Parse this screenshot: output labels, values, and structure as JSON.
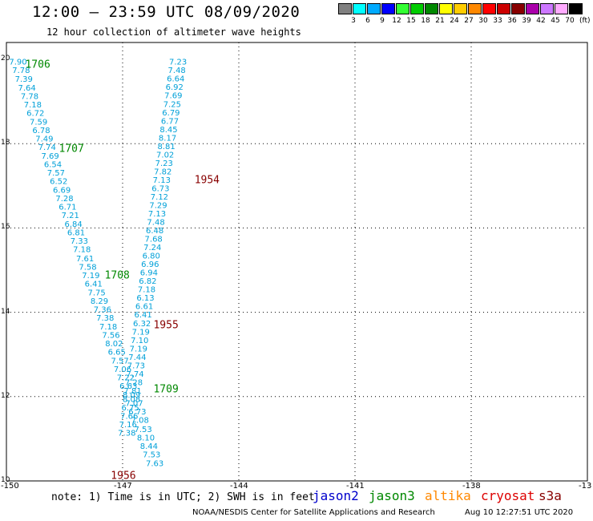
{
  "header": {
    "title": "12:00 – 23:59 UTC 08/09/2020",
    "subtitle": "12 hour collection of altimeter wave heights"
  },
  "color_scale": {
    "unit": "(ft)",
    "bins": [
      {
        "label": "3",
        "color": "#808080"
      },
      {
        "label": "6",
        "color": "#00ffff"
      },
      {
        "label": "9",
        "color": "#00aaff"
      },
      {
        "label": "12",
        "color": "#0000ff"
      },
      {
        "label": "15",
        "color": "#33ff33"
      },
      {
        "label": "18",
        "color": "#00cc00"
      },
      {
        "label": "21",
        "color": "#008800"
      },
      {
        "label": "24",
        "color": "#ffff00"
      },
      {
        "label": "27",
        "color": "#ffcc00"
      },
      {
        "label": "30",
        "color": "#ff8800"
      },
      {
        "label": "33",
        "color": "#ff0000"
      },
      {
        "label": "36",
        "color": "#cc0000"
      },
      {
        "label": "39",
        "color": "#880000"
      },
      {
        "label": "42",
        "color": "#aa00aa"
      },
      {
        "label": "45",
        "color": "#cc77ff"
      },
      {
        "label": "70",
        "color": "#ffaaff"
      },
      {
        "label": "",
        "color": "#000000"
      }
    ]
  },
  "map": {
    "lon_ticks": [
      "-150",
      "-147",
      "-144",
      "-141",
      "-138",
      "-13"
    ],
    "lat_ticks": [
      "20",
      "18",
      "16",
      "14",
      "12",
      "10"
    ],
    "wave_color": "#00a0d8",
    "tracks": [
      {
        "points": [
          {
            "lon": -149.7,
            "lat": 19.95,
            "v": "7.90"
          },
          {
            "lon": -149.62,
            "lat": 19.75,
            "v": "7.78"
          },
          {
            "lon": -149.55,
            "lat": 19.54,
            "v": "7.39"
          },
          {
            "lon": -149.47,
            "lat": 19.34,
            "v": "7.64"
          },
          {
            "lon": -149.4,
            "lat": 19.14,
            "v": "7.78"
          },
          {
            "lon": -149.32,
            "lat": 18.94,
            "v": "7.18"
          },
          {
            "lon": -149.25,
            "lat": 18.74,
            "v": "6.72"
          },
          {
            "lon": -149.17,
            "lat": 18.53,
            "v": "7.59"
          },
          {
            "lon": -149.1,
            "lat": 18.33,
            "v": "6.78"
          },
          {
            "lon": -149.02,
            "lat": 18.13,
            "v": "7.49"
          },
          {
            "lon": -148.95,
            "lat": 17.93,
            "v": "7.74"
          },
          {
            "lon": -148.87,
            "lat": 17.72,
            "v": "7.69"
          },
          {
            "lon": -148.8,
            "lat": 17.52,
            "v": "6.54"
          },
          {
            "lon": -148.72,
            "lat": 17.32,
            "v": "7.57"
          },
          {
            "lon": -148.65,
            "lat": 17.12,
            "v": "6.52"
          },
          {
            "lon": -148.57,
            "lat": 16.91,
            "v": "6.69"
          },
          {
            "lon": -148.5,
            "lat": 16.71,
            "v": "7.28"
          },
          {
            "lon": -148.42,
            "lat": 16.51,
            "v": "6.71"
          },
          {
            "lon": -148.35,
            "lat": 16.31,
            "v": "7.21"
          },
          {
            "lon": -148.27,
            "lat": 16.1,
            "v": "6.84"
          },
          {
            "lon": -148.2,
            "lat": 15.9,
            "v": "6.81"
          },
          {
            "lon": -148.12,
            "lat": 15.7,
            "v": "7.33"
          },
          {
            "lon": -148.05,
            "lat": 15.5,
            "v": "7.18"
          },
          {
            "lon": -147.97,
            "lat": 15.29,
            "v": "7.61"
          },
          {
            "lon": -147.9,
            "lat": 15.09,
            "v": "7.58"
          },
          {
            "lon": -147.82,
            "lat": 14.89,
            "v": "7.19"
          },
          {
            "lon": -147.75,
            "lat": 14.69,
            "v": "6.41"
          },
          {
            "lon": -147.67,
            "lat": 14.48,
            "v": "7.75"
          },
          {
            "lon": -147.6,
            "lat": 14.28,
            "v": "8.29"
          },
          {
            "lon": -147.52,
            "lat": 14.08,
            "v": "7.36"
          },
          {
            "lon": -147.45,
            "lat": 13.88,
            "v": "7.38"
          },
          {
            "lon": -147.37,
            "lat": 13.67,
            "v": "7.18"
          },
          {
            "lon": -147.3,
            "lat": 13.47,
            "v": "7.56"
          },
          {
            "lon": -147.22,
            "lat": 13.27,
            "v": "8.02"
          },
          {
            "lon": -147.15,
            "lat": 13.07,
            "v": "6.65"
          },
          {
            "lon": -147.07,
            "lat": 12.86,
            "v": "7.57"
          },
          {
            "lon": -147.0,
            "lat": 12.66,
            "v": "7.06"
          },
          {
            "lon": -146.92,
            "lat": 12.46,
            "v": "7.22"
          },
          {
            "lon": -146.85,
            "lat": 12.26,
            "v": "6.63"
          },
          {
            "lon": -146.77,
            "lat": 12.05,
            "v": "8.09"
          },
          {
            "lon": -146.7,
            "lat": 11.85,
            "v": "7.07"
          },
          {
            "lon": -146.62,
            "lat": 11.65,
            "v": "6.73"
          },
          {
            "lon": -146.55,
            "lat": 11.45,
            "v": "7.08"
          },
          {
            "lon": -146.47,
            "lat": 11.24,
            "v": "7.53"
          },
          {
            "lon": -146.4,
            "lat": 11.04,
            "v": "8.10"
          },
          {
            "lon": -146.32,
            "lat": 10.84,
            "v": "8.44"
          },
          {
            "lon": -146.25,
            "lat": 10.64,
            "v": "7.53"
          },
          {
            "lon": -146.17,
            "lat": 10.43,
            "v": "7.63"
          }
        ]
      },
      {
        "points": [
          {
            "lon": -145.57,
            "lat": 19.95,
            "v": "7.23"
          },
          {
            "lon": -145.6,
            "lat": 19.75,
            "v": "7.48"
          },
          {
            "lon": -145.63,
            "lat": 19.55,
            "v": "6.64"
          },
          {
            "lon": -145.66,
            "lat": 19.35,
            "v": "6.92"
          },
          {
            "lon": -145.69,
            "lat": 19.15,
            "v": "7.69"
          },
          {
            "lon": -145.72,
            "lat": 18.95,
            "v": "7.25"
          },
          {
            "lon": -145.75,
            "lat": 18.75,
            "v": "6.79"
          },
          {
            "lon": -145.78,
            "lat": 18.55,
            "v": "6.77"
          },
          {
            "lon": -145.81,
            "lat": 18.35,
            "v": "8.45"
          },
          {
            "lon": -145.84,
            "lat": 18.15,
            "v": "8.17"
          },
          {
            "lon": -145.87,
            "lat": 17.95,
            "v": "8.81"
          },
          {
            "lon": -145.9,
            "lat": 17.75,
            "v": "7.02"
          },
          {
            "lon": -145.93,
            "lat": 17.55,
            "v": "7.23"
          },
          {
            "lon": -145.96,
            "lat": 17.35,
            "v": "7.82"
          },
          {
            "lon": -145.99,
            "lat": 17.15,
            "v": "7.13"
          },
          {
            "lon": -146.02,
            "lat": 16.95,
            "v": "6.73"
          },
          {
            "lon": -146.05,
            "lat": 16.75,
            "v": "7.12"
          },
          {
            "lon": -146.08,
            "lat": 16.55,
            "v": "7.29"
          },
          {
            "lon": -146.11,
            "lat": 16.35,
            "v": "7.13"
          },
          {
            "lon": -146.14,
            "lat": 16.15,
            "v": "7.48"
          },
          {
            "lon": -146.17,
            "lat": 15.95,
            "v": "6.48"
          },
          {
            "lon": -146.2,
            "lat": 15.75,
            "v": "7.68"
          },
          {
            "lon": -146.23,
            "lat": 15.55,
            "v": "7.24"
          },
          {
            "lon": -146.26,
            "lat": 15.35,
            "v": "6.80"
          },
          {
            "lon": -146.29,
            "lat": 15.15,
            "v": "6.96"
          },
          {
            "lon": -146.32,
            "lat": 14.95,
            "v": "6.94"
          },
          {
            "lon": -146.35,
            "lat": 14.75,
            "v": "6.82"
          },
          {
            "lon": -146.38,
            "lat": 14.55,
            "v": "7.18"
          },
          {
            "lon": -146.41,
            "lat": 14.35,
            "v": "6.13"
          },
          {
            "lon": -146.44,
            "lat": 14.15,
            "v": "6.61"
          },
          {
            "lon": -146.47,
            "lat": 13.95,
            "v": "6.41"
          },
          {
            "lon": -146.5,
            "lat": 13.75,
            "v": "6.32"
          },
          {
            "lon": -146.53,
            "lat": 13.55,
            "v": "7.19"
          },
          {
            "lon": -146.56,
            "lat": 13.35,
            "v": "7.10"
          },
          {
            "lon": -146.59,
            "lat": 13.15,
            "v": "7.19"
          },
          {
            "lon": -146.62,
            "lat": 12.95,
            "v": "7.44"
          },
          {
            "lon": -146.65,
            "lat": 12.75,
            "v": "7.73"
          },
          {
            "lon": -146.68,
            "lat": 12.55,
            "v": "7.74"
          },
          {
            "lon": -146.71,
            "lat": 12.35,
            "v": "7.28"
          },
          {
            "lon": -146.74,
            "lat": 12.15,
            "v": "7.81"
          },
          {
            "lon": -146.77,
            "lat": 11.95,
            "v": "8.08"
          },
          {
            "lon": -146.8,
            "lat": 11.75,
            "v": "6.75"
          },
          {
            "lon": -146.83,
            "lat": 11.55,
            "v": "7.66"
          },
          {
            "lon": -146.86,
            "lat": 11.35,
            "v": "7.16"
          },
          {
            "lon": -146.89,
            "lat": 11.15,
            "v": "7.38"
          }
        ]
      }
    ],
    "pass_labels": [
      {
        "text": "1706",
        "lon": -149.19,
        "lat": 19.9,
        "color": "#008800"
      },
      {
        "text": "1707",
        "lon": -148.32,
        "lat": 17.9,
        "color": "#008800"
      },
      {
        "text": "1708",
        "lon": -147.14,
        "lat": 14.9,
        "color": "#008800"
      },
      {
        "text": "1709",
        "lon": -145.88,
        "lat": 12.2,
        "color": "#008800"
      },
      {
        "text": "1954",
        "lon": -144.82,
        "lat": 17.16,
        "color": "#880000"
      },
      {
        "text": "1955",
        "lon": -145.88,
        "lat": 13.72,
        "color": "#880000"
      },
      {
        "text": "1956",
        "lon": -146.98,
        "lat": 10.14,
        "color": "#880000"
      }
    ]
  },
  "footer": {
    "note": "note: 1) Time is in UTC; 2) SWH is in feet",
    "satellites": [
      {
        "name": "jason2",
        "color": "#0000cc"
      },
      {
        "name": "jason3",
        "color": "#008800"
      },
      {
        "name": "altika",
        "color": "#ff8800"
      },
      {
        "name": "cryosat",
        "color": "#dd0000"
      },
      {
        "name": "s3a",
        "color": "#880000"
      }
    ],
    "credit": "NOAA/NESDIS Center for Satellite Applications and Research",
    "timestamp": "Aug 10 12:27:51 UTC 2020"
  }
}
